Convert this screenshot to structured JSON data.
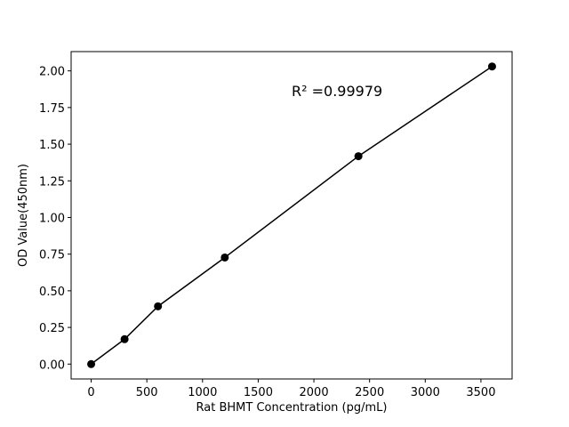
{
  "chart_data": {
    "type": "line",
    "x_label": "Rat BHMT Concentration (pg/mL)",
    "y_label": "OD Value(450nm)",
    "annotation": "R² =0.99979",
    "x": [
      0,
      300,
      600,
      1200,
      2400,
      3600
    ],
    "series": [
      {
        "name": "OD",
        "color": "#000000",
        "values": [
          0,
          0.17,
          0.394,
          0.727,
          1.418,
          2.03
        ]
      }
    ],
    "markers": true,
    "xlim": [
      -180,
      3780
    ],
    "xticks": [
      0,
      500,
      1000,
      1500,
      2000,
      2500,
      3000,
      3500
    ],
    "ylim": [
      -0.1015,
      2.1315
    ],
    "yticks": [
      {
        "value": 0,
        "label": "0.00"
      },
      {
        "value": 0.25,
        "label": "0.25"
      },
      {
        "value": 0.5,
        "label": "0.50"
      },
      {
        "value": 0.75,
        "label": "0.75"
      },
      {
        "value": 1,
        "label": "1.00"
      },
      {
        "value": 1.25,
        "label": "1.25"
      },
      {
        "value": 1.5,
        "label": "1.50"
      },
      {
        "value": 1.75,
        "label": "1.75"
      },
      {
        "value": 2,
        "label": "2.00"
      }
    ]
  }
}
